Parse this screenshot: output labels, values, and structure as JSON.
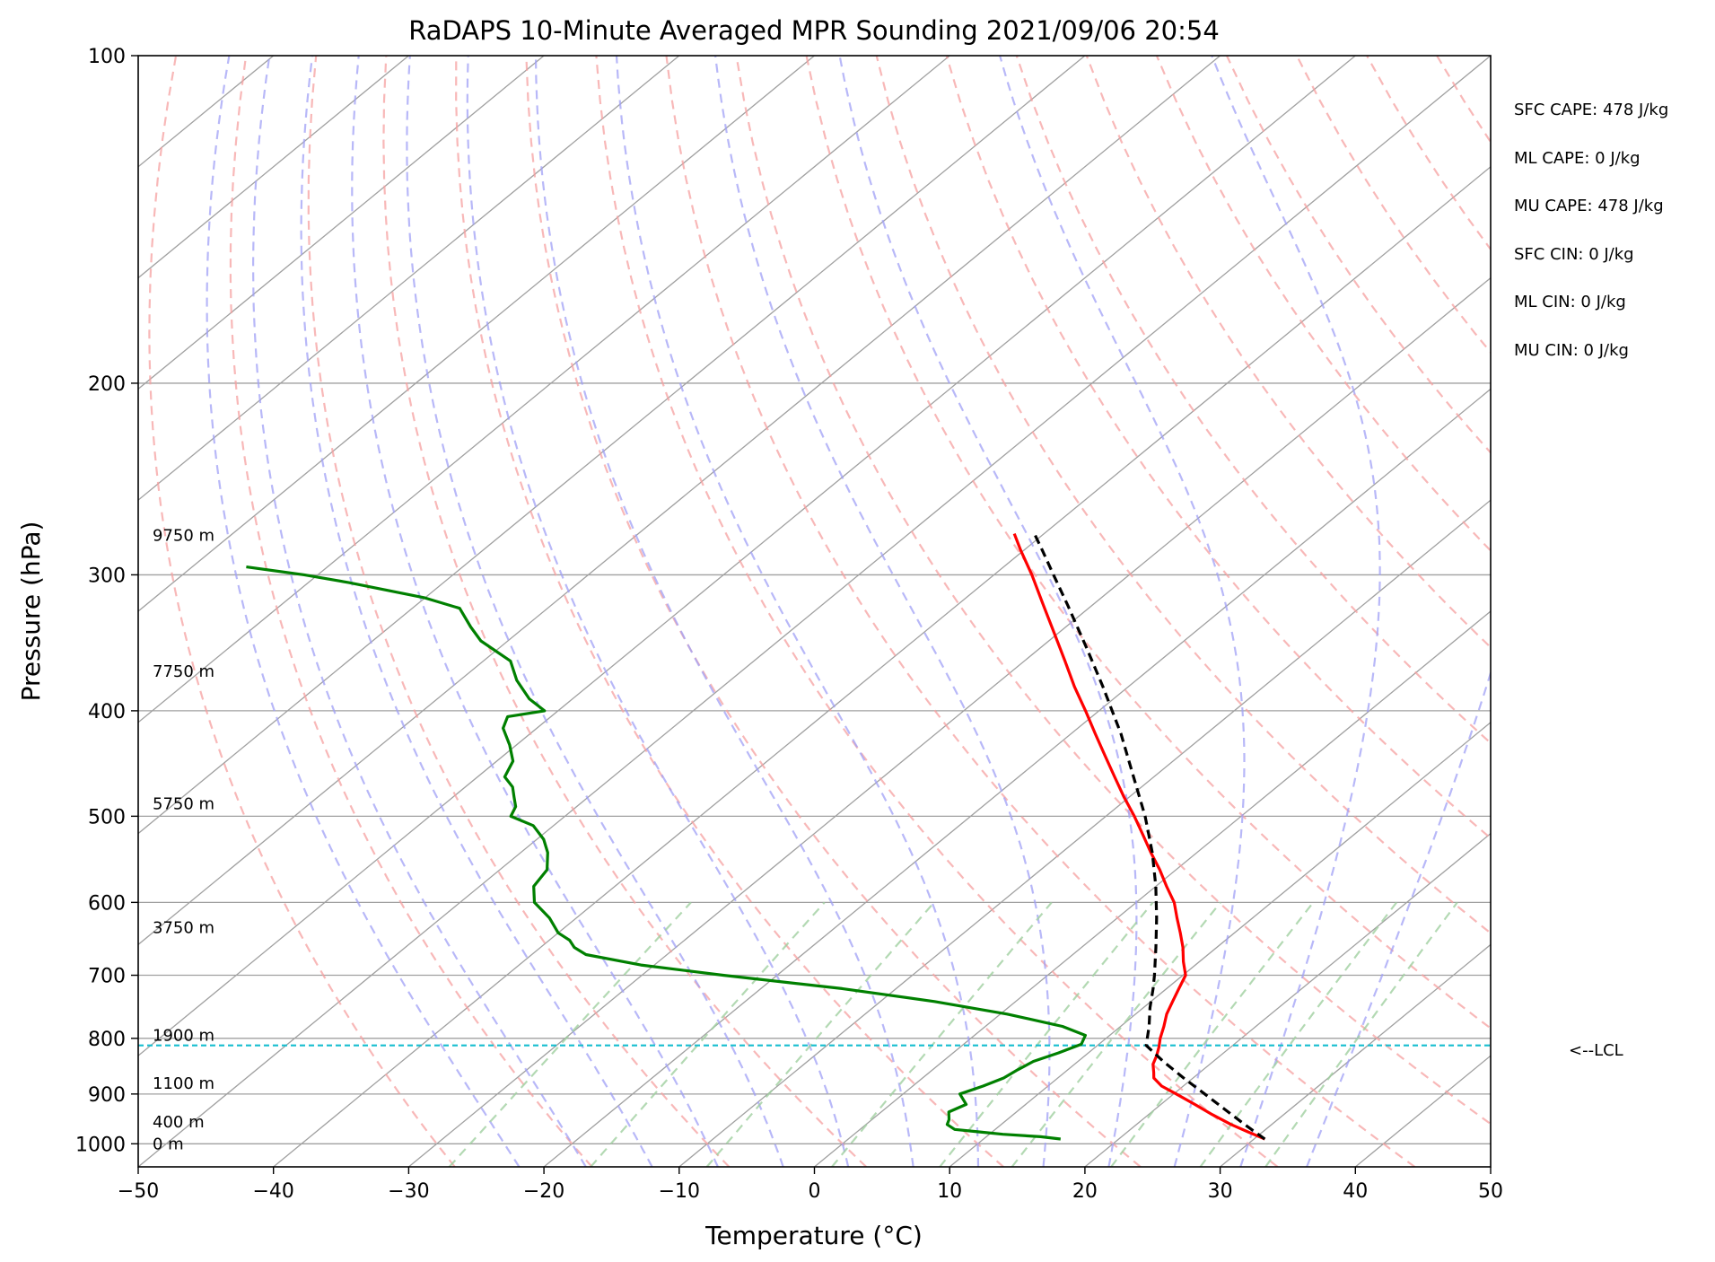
{
  "chart_data": {
    "type": "line",
    "title": "RaDAPS 10-Minute Averaged MPR Sounding 2021/09/06 20:54",
    "xlabel": "Temperature (°C)",
    "ylabel": "Pressure (hPa)",
    "xlim": [
      -50,
      50
    ],
    "ylim": [
      1050,
      100
    ],
    "y_scale": "log",
    "grid": true,
    "x_ticks": [
      -50,
      -40,
      -30,
      -20,
      -10,
      0,
      10,
      20,
      30,
      40,
      50
    ],
    "x_tick_labels": [
      "−50",
      "−40",
      "−30",
      "−20",
      "−10",
      "0",
      "10",
      "20",
      "30",
      "40",
      "50"
    ],
    "y_ticks": [
      100,
      200,
      300,
      400,
      500,
      600,
      700,
      800,
      900,
      1000
    ],
    "y_tick_labels": [
      "100",
      "200",
      "300",
      "400",
      "500",
      "600",
      "700",
      "800",
      "900",
      "1000"
    ],
    "colors": {
      "temperature": "#ff0000",
      "dewpoint": "#008000",
      "parcel": "#000000",
      "lcl": "#17becf",
      "dry_adiabat": "#f5a0a0",
      "moist_adiabat": "#a0a0f5",
      "mixing_ratio": "#a0d0a0",
      "isotherm": "#a0a0a0"
    },
    "series": [
      {
        "key": "temperature",
        "p": [
          990,
          975,
          960,
          940,
          920,
          900,
          885,
          870,
          860,
          845,
          830,
          815,
          800,
          780,
          760,
          740,
          720,
          700,
          680,
          660,
          640,
          620,
          600,
          580,
          560,
          540,
          520,
          500,
          480,
          460,
          440,
          420,
          400,
          380,
          360,
          340,
          320,
          300,
          285,
          275
        ],
        "t": [
          30.8,
          28.9,
          27.0,
          24.7,
          22.5,
          20.2,
          18.4,
          17.1,
          16.6,
          15.8,
          15.3,
          14.7,
          14.0,
          13.2,
          12.3,
          11.6,
          10.9,
          10.2,
          8.8,
          7.5,
          6.0,
          4.4,
          2.8,
          0.8,
          -1.2,
          -3.4,
          -5.6,
          -7.9,
          -10.4,
          -12.9,
          -15.5,
          -18.2,
          -21.0,
          -24.0,
          -27.0,
          -30.2,
          -33.6,
          -37.2,
          -40.2,
          -42.2
        ]
      },
      {
        "key": "dewpoint",
        "p": [
          990,
          985,
          980,
          975,
          970,
          960,
          950,
          935,
          920,
          900,
          885,
          870,
          855,
          840,
          825,
          810,
          795,
          780,
          760,
          740,
          720,
          700,
          685,
          670,
          660,
          650,
          640,
          620,
          600,
          580,
          560,
          540,
          525,
          510,
          500,
          490,
          480,
          470,
          460,
          445,
          430,
          415,
          405,
          400,
          390,
          375,
          360,
          345,
          335,
          322,
          315,
          305,
          300,
          295
        ],
        "td": [
          15.7,
          14.0,
          11.0,
          9.0,
          7.0,
          6.0,
          5.7,
          5.0,
          5.6,
          4.2,
          5.2,
          6.0,
          6.3,
          6.7,
          7.8,
          8.7,
          8.2,
          5.7,
          0.5,
          -6.0,
          -14.0,
          -24.0,
          -31.0,
          -36.0,
          -37.5,
          -38.5,
          -40.0,
          -42.0,
          -44.5,
          -46.0,
          -46.5,
          -48.0,
          -49.5,
          -51.5,
          -54.0,
          -54.5,
          -55.5,
          -56.5,
          -58.0,
          -58.8,
          -60.5,
          -62.5,
          -63.2,
          -61.0,
          -63.2,
          -65.8,
          -68.0,
          -72.0,
          -74.0,
          -76.5,
          -80.0,
          -87.0,
          -91.0,
          -96.0
        ]
      },
      {
        "key": "parcel",
        "p": [
          990,
          960,
          930,
          900,
          870,
          840,
          812,
          780,
          750,
          720,
          700,
          660,
          620,
          580,
          540,
          500,
          460,
          420,
          380,
          350,
          320,
          300,
          285,
          276
        ],
        "t": [
          30.8,
          28.0,
          25.2,
          22.3,
          19.3,
          16.3,
          13.6,
          12.1,
          10.5,
          9.0,
          7.9,
          5.5,
          2.9,
          0.0,
          -3.3,
          -7.1,
          -11.5,
          -16.3,
          -21.9,
          -26.6,
          -31.8,
          -35.6,
          -38.6,
          -40.5
        ]
      }
    ],
    "lcl": {
      "p": 812,
      "label": "<--LCL"
    },
    "height_labels": [
      {
        "text": "9750 m",
        "p": 276
      },
      {
        "text": "7750 m",
        "p": 368
      },
      {
        "text": "5750 m",
        "p": 487
      },
      {
        "text": "3750 m",
        "p": 633
      },
      {
        "text": "1900 m",
        "p": 795
      },
      {
        "text": "1100 m",
        "p": 880
      },
      {
        "text": "400 m",
        "p": 955
      },
      {
        "text": "0 m",
        "p": 1000
      }
    ],
    "stats": [
      "SFC CAPE: 478 J/kg",
      "ML CAPE: 0 J/kg",
      "MU CAPE: 478 J/kg",
      "SFC CIN: 0 J/kg",
      "ML CIN: 0 J/kg",
      "MU CIN: 0 J/kg"
    ]
  }
}
